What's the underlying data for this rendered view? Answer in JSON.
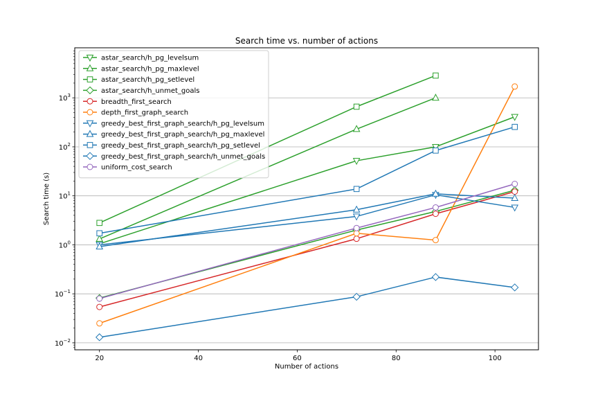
{
  "chart_data": {
    "type": "line",
    "title": "Search time vs. number of actions",
    "xlabel": "Number of actions",
    "ylabel": "Search time (s)",
    "yscale": "log",
    "xlim": [
      15,
      108.8
    ],
    "ylim": [
      0.0072,
      10500
    ],
    "xticks": [
      20,
      40,
      60,
      80,
      100
    ],
    "yticks": [
      0.01,
      0.1,
      1,
      10,
      100,
      1000
    ],
    "ytick_labels": [
      [
        "10",
        "−2"
      ],
      [
        "10",
        "−1"
      ],
      [
        "10",
        "0"
      ],
      [
        "10",
        "1"
      ],
      [
        "10",
        "2"
      ],
      [
        "10",
        "3"
      ]
    ],
    "grid": "horizontal",
    "legend_position": "upper-left",
    "colors": {
      "green": "#2ca02c",
      "orange": "#ff7f0e",
      "red": "#d62728",
      "blue": "#1f77b4",
      "purple": "#9467bd"
    },
    "series": [
      {
        "name": "astar_search/h_pg_levelsum",
        "color": "#2ca02c",
        "marker": "triangle-down",
        "x": [
          20,
          72,
          88,
          104
        ],
        "y": [
          1.05,
          52,
          100,
          410
        ]
      },
      {
        "name": "astar_search/h_pg_maxlevel",
        "color": "#2ca02c",
        "marker": "triangle-up",
        "x": [
          20,
          72,
          88
        ],
        "y": [
          1.32,
          230,
          1000
        ]
      },
      {
        "name": "astar_search/h_pg_setlevel",
        "color": "#2ca02c",
        "marker": "square",
        "x": [
          20,
          72,
          88
        ],
        "y": [
          2.8,
          660,
          2850
        ]
      },
      {
        "name": "astar_search/h_unmet_goals",
        "color": "#2ca02c",
        "marker": "diamond",
        "x": [
          20,
          72,
          88,
          104
        ],
        "y": [
          0.082,
          2.0,
          4.8,
          13.0
        ]
      },
      {
        "name": "breadth_first_search",
        "color": "#d62728",
        "marker": "circle",
        "x": [
          20,
          72,
          88,
          104
        ],
        "y": [
          0.054,
          1.33,
          4.3,
          12.2
        ]
      },
      {
        "name": "depth_first_graph_search",
        "color": "#ff7f0e",
        "marker": "circle",
        "x": [
          20,
          72,
          88,
          104
        ],
        "y": [
          0.025,
          1.72,
          1.25,
          1700
        ]
      },
      {
        "name": "greedy_best_first_graph_search/h_pg_levelsum",
        "color": "#1f77b4",
        "marker": "triangle-down",
        "x": [
          20,
          72,
          88,
          104
        ],
        "y": [
          1.0,
          3.8,
          10.5,
          5.8
        ]
      },
      {
        "name": "greedy_best_first_graph_search/h_pg_maxlevel",
        "color": "#1f77b4",
        "marker": "triangle-up",
        "x": [
          20,
          72,
          88,
          104
        ],
        "y": [
          0.92,
          5.2,
          11.0,
          9.0
        ]
      },
      {
        "name": "greedy_best_first_graph_search/h_pg_setlevel",
        "color": "#1f77b4",
        "marker": "square",
        "x": [
          20,
          72,
          88,
          104
        ],
        "y": [
          1.72,
          13.8,
          84,
          255
        ]
      },
      {
        "name": "greedy_best_first_graph_search/h_unmet_goals",
        "color": "#1f77b4",
        "marker": "diamond",
        "x": [
          20,
          72,
          88,
          104
        ],
        "y": [
          0.013,
          0.087,
          0.22,
          0.135
        ]
      },
      {
        "name": "uniform_cost_search",
        "color": "#9467bd",
        "marker": "circle",
        "x": [
          20,
          72,
          88,
          104
        ],
        "y": [
          0.08,
          2.2,
          5.8,
          17.5
        ]
      }
    ]
  }
}
